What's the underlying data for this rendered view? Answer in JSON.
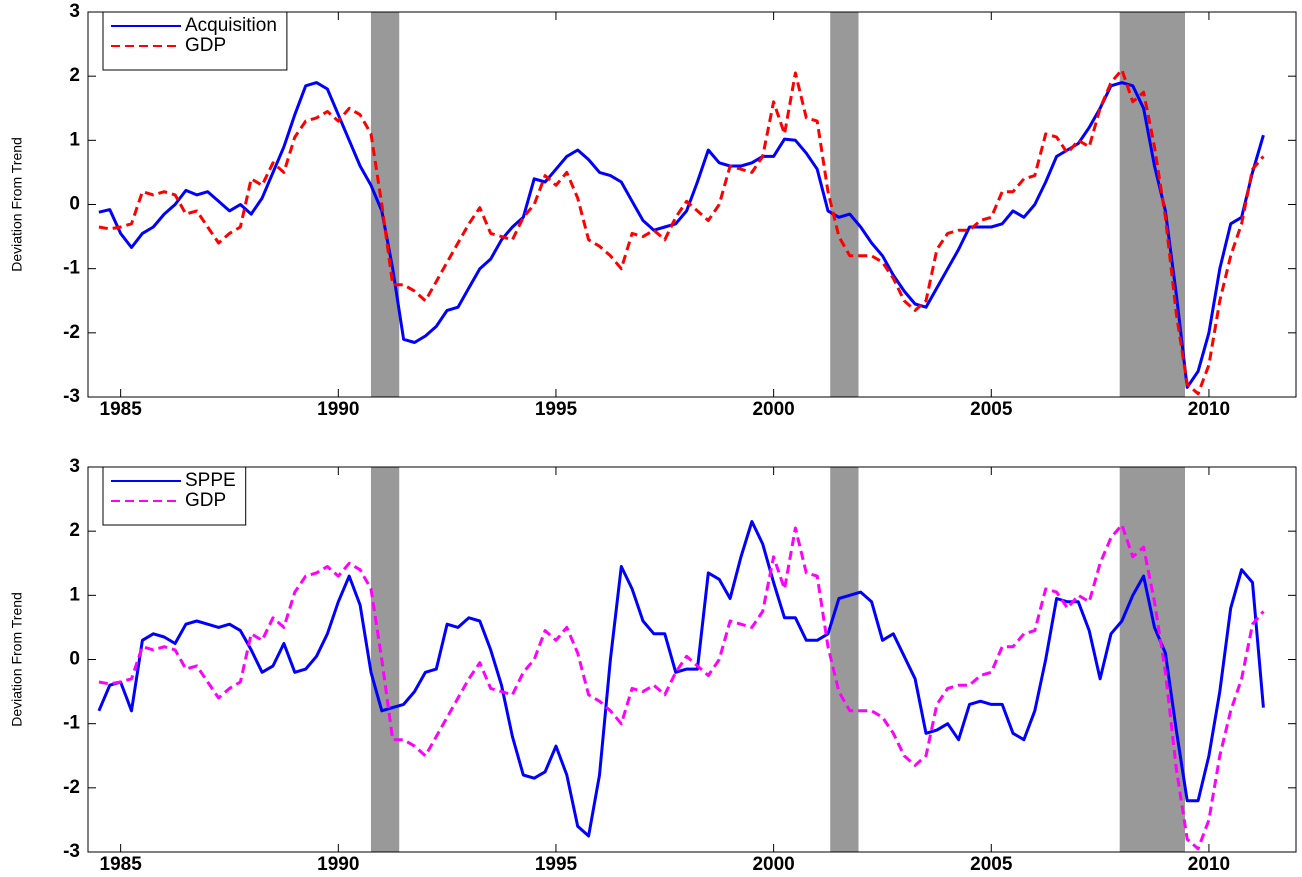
{
  "chart_data": [
    {
      "type": "line",
      "ylabel": "Deviation From Trend",
      "xlim": [
        1984.25,
        2012
      ],
      "ylim": [
        -3,
        3
      ],
      "xticks": [
        1985,
        1990,
        1995,
        2000,
        2005,
        2010
      ],
      "yticks": [
        -3,
        -2,
        -1,
        0,
        1,
        2,
        3
      ],
      "legend": "upper left",
      "shade_color": "#999999",
      "shaded_periods": [
        [
          1990.75,
          1991.4
        ],
        [
          2001.3,
          2001.95
        ],
        [
          2007.95,
          2009.45
        ]
      ],
      "x": [
        1984.5,
        1984.75,
        1985,
        1985.25,
        1985.5,
        1985.75,
        1986,
        1986.25,
        1986.5,
        1986.75,
        1987,
        1987.25,
        1987.5,
        1987.75,
        1988,
        1988.25,
        1988.5,
        1988.75,
        1989,
        1989.25,
        1989.5,
        1989.75,
        1990,
        1990.25,
        1990.5,
        1990.75,
        1991,
        1991.25,
        1991.5,
        1991.75,
        1992,
        1992.25,
        1992.5,
        1992.75,
        1993,
        1993.25,
        1993.5,
        1993.75,
        1994,
        1994.25,
        1994.5,
        1994.75,
        1995,
        1995.25,
        1995.5,
        1995.75,
        1996,
        1996.25,
        1996.5,
        1996.75,
        1997,
        1997.25,
        1997.5,
        1997.75,
        1998,
        1998.25,
        1998.5,
        1998.75,
        1999,
        1999.25,
        1999.5,
        1999.75,
        2000,
        2000.25,
        2000.5,
        2000.75,
        2001,
        2001.25,
        2001.5,
        2001.75,
        2002,
        2002.25,
        2002.5,
        2002.75,
        2003,
        2003.25,
        2003.5,
        2003.75,
        2004,
        2004.25,
        2004.5,
        2004.75,
        2005,
        2005.25,
        2005.5,
        2005.75,
        2006,
        2006.25,
        2006.5,
        2006.75,
        2007,
        2007.25,
        2007.5,
        2007.75,
        2008,
        2008.25,
        2008.5,
        2008.75,
        2009,
        2009.25,
        2009.5,
        2009.75,
        2010,
        2010.25,
        2010.5,
        2010.75,
        2011,
        2011.25
      ],
      "series": [
        {
          "name": "Acquisition",
          "color": "#0000ff",
          "linestyle": "solid",
          "values": [
            -0.12,
            -0.08,
            -0.45,
            -0.67,
            -0.45,
            -0.35,
            -0.15,
            0,
            0.22,
            0.15,
            0.2,
            0.05,
            -0.1,
            0,
            -0.15,
            0.1,
            0.5,
            0.9,
            1.4,
            1.85,
            1.9,
            1.8,
            1.4,
            1,
            0.6,
            0.3,
            -0.1,
            -1,
            -2.1,
            -2.15,
            -2.05,
            -1.9,
            -1.65,
            -1.6,
            -1.3,
            -1,
            -0.85,
            -0.55,
            -0.35,
            -0.2,
            0.4,
            0.35,
            0.55,
            0.75,
            0.85,
            0.7,
            0.5,
            0.45,
            0.35,
            0.05,
            -0.25,
            -0.4,
            -0.35,
            -0.3,
            -0.1,
            0.35,
            0.85,
            0.65,
            0.6,
            0.6,
            0.65,
            0.75,
            0.75,
            1.02,
            1,
            0.8,
            0.55,
            -0.1,
            -0.2,
            -0.15,
            -0.35,
            -0.6,
            -0.8,
            -1.1,
            -1.35,
            -1.55,
            -1.6,
            -1.3,
            -1,
            -0.7,
            -0.35,
            -0.35,
            -0.35,
            -0.3,
            -0.1,
            -0.2,
            0,
            0.35,
            0.75,
            0.85,
            0.95,
            1.2,
            1.5,
            1.85,
            1.9,
            1.85,
            1.5,
            0.6,
            -0.1,
            -1.4,
            -2.85,
            -2.6,
            -2,
            -1,
            -0.3,
            -0.2,
            0.5,
            1.08
          ]
        },
        {
          "name": "GDP",
          "color": "#ff0000",
          "linestyle": "dashed",
          "values": [
            -0.35,
            -0.38,
            -0.35,
            -0.3,
            0.2,
            0.15,
            0.2,
            0.15,
            -0.15,
            -0.1,
            -0.35,
            -0.6,
            -0.45,
            -0.35,
            0.4,
            0.3,
            0.65,
            0.5,
            1.05,
            1.3,
            1.35,
            1.45,
            1.3,
            1.5,
            1.4,
            1.1,
            0,
            -1.25,
            -1.25,
            -1.35,
            -1.5,
            -1.2,
            -0.9,
            -0.6,
            -0.3,
            -0.05,
            -0.45,
            -0.5,
            -0.55,
            -0.2,
            0,
            0.45,
            0.3,
            0.5,
            0.1,
            -0.55,
            -0.65,
            -0.8,
            -1,
            -0.45,
            -0.5,
            -0.4,
            -0.55,
            -0.2,
            0.05,
            -0.1,
            -0.25,
            0,
            0.6,
            0.55,
            0.5,
            0.75,
            1.6,
            1.1,
            2.05,
            1.35,
            1.3,
            0.2,
            -0.5,
            -0.8,
            -0.8,
            -0.8,
            -0.9,
            -1.15,
            -1.5,
            -1.65,
            -1.5,
            -0.7,
            -0.45,
            -0.4,
            -0.4,
            -0.25,
            -0.2,
            0.2,
            0.2,
            0.4,
            0.45,
            1.1,
            1.05,
            0.8,
            1,
            0.9,
            1.5,
            1.9,
            2.1,
            1.6,
            1.75,
            0.9,
            -0.2,
            -1.7,
            -2.8,
            -2.95,
            -2.5,
            -1.5,
            -0.8,
            -0.3,
            0.55,
            0.75
          ]
        }
      ]
    },
    {
      "type": "line",
      "ylabel": "Deviation From Trend",
      "xlim": [
        1984.25,
        2012
      ],
      "ylim": [
        -3,
        3
      ],
      "xticks": [
        1985,
        1990,
        1995,
        2000,
        2005,
        2010
      ],
      "yticks": [
        -3,
        -2,
        -1,
        0,
        1,
        2,
        3
      ],
      "legend": "upper left",
      "shade_color": "#999999",
      "shaded_periods": [
        [
          1990.75,
          1991.4
        ],
        [
          2001.3,
          2001.95
        ],
        [
          2007.95,
          2009.45
        ]
      ],
      "x": [
        1984.5,
        1984.75,
        1985,
        1985.25,
        1985.5,
        1985.75,
        1986,
        1986.25,
        1986.5,
        1986.75,
        1987,
        1987.25,
        1987.5,
        1987.75,
        1988,
        1988.25,
        1988.5,
        1988.75,
        1989,
        1989.25,
        1989.5,
        1989.75,
        1990,
        1990.25,
        1990.5,
        1990.75,
        1991,
        1991.25,
        1991.5,
        1991.75,
        1992,
        1992.25,
        1992.5,
        1992.75,
        1993,
        1993.25,
        1993.5,
        1993.75,
        1994,
        1994.25,
        1994.5,
        1994.75,
        1995,
        1995.25,
        1995.5,
        1995.75,
        1996,
        1996.25,
        1996.5,
        1996.75,
        1997,
        1997.25,
        1997.5,
        1997.75,
        1998,
        1998.25,
        1998.5,
        1998.75,
        1999,
        1999.25,
        1999.5,
        1999.75,
        2000,
        2000.25,
        2000.5,
        2000.75,
        2001,
        2001.25,
        2001.5,
        2001.75,
        2002,
        2002.25,
        2002.5,
        2002.75,
        2003,
        2003.25,
        2003.5,
        2003.75,
        2004,
        2004.25,
        2004.5,
        2004.75,
        2005,
        2005.25,
        2005.5,
        2005.75,
        2006,
        2006.25,
        2006.5,
        2006.75,
        2007,
        2007.25,
        2007.5,
        2007.75,
        2008,
        2008.25,
        2008.5,
        2008.75,
        2009,
        2009.25,
        2009.5,
        2009.75,
        2010,
        2010.25,
        2010.5,
        2010.75,
        2011,
        2011.25
      ],
      "series": [
        {
          "name": "SPPE",
          "color": "#0000ff",
          "linestyle": "solid",
          "values": [
            -0.8,
            -0.4,
            -0.35,
            -0.8,
            0.3,
            0.4,
            0.35,
            0.25,
            0.55,
            0.6,
            0.55,
            0.5,
            0.55,
            0.45,
            0.15,
            -0.2,
            -0.1,
            0.25,
            -0.2,
            -0.15,
            0.05,
            0.4,
            0.9,
            1.3,
            0.85,
            -0.2,
            -0.8,
            -0.75,
            -0.7,
            -0.5,
            -0.2,
            -0.15,
            0.55,
            0.5,
            0.65,
            0.6,
            0.15,
            -0.4,
            -1.2,
            -1.8,
            -1.85,
            -1.75,
            -1.35,
            -1.8,
            -2.6,
            -2.75,
            -1.8,
            0,
            1.45,
            1.1,
            0.6,
            0.4,
            0.4,
            -0.2,
            -0.15,
            -0.15,
            1.35,
            1.25,
            0.95,
            1.6,
            2.15,
            1.8,
            1.2,
            0.65,
            0.65,
            0.3,
            0.3,
            0.4,
            0.95,
            1,
            1.05,
            0.9,
            0.3,
            0.4,
            0.05,
            -0.3,
            -1.15,
            -1.1,
            -1,
            -1.25,
            -0.7,
            -0.65,
            -0.7,
            -0.7,
            -1.15,
            -1.25,
            -0.8,
            0,
            0.95,
            0.9,
            0.9,
            0.45,
            -0.3,
            0.4,
            0.6,
            1,
            1.3,
            0.5,
            0.1,
            -1.1,
            -2.2,
            -2.2,
            -1.5,
            -0.5,
            0.8,
            1.4,
            1.2,
            -0.75
          ]
        },
        {
          "name": "GDP",
          "color": "#ff00ff",
          "linestyle": "dashed",
          "values": [
            -0.35,
            -0.38,
            -0.35,
            -0.3,
            0.2,
            0.15,
            0.2,
            0.15,
            -0.15,
            -0.1,
            -0.35,
            -0.6,
            -0.45,
            -0.35,
            0.4,
            0.3,
            0.65,
            0.5,
            1.05,
            1.3,
            1.35,
            1.45,
            1.3,
            1.5,
            1.4,
            1.1,
            0,
            -1.25,
            -1.25,
            -1.35,
            -1.5,
            -1.2,
            -0.9,
            -0.6,
            -0.3,
            -0.05,
            -0.45,
            -0.5,
            -0.55,
            -0.2,
            0,
            0.45,
            0.3,
            0.5,
            0.1,
            -0.55,
            -0.65,
            -0.8,
            -1,
            -0.45,
            -0.5,
            -0.4,
            -0.55,
            -0.2,
            0.05,
            -0.1,
            -0.25,
            0,
            0.6,
            0.55,
            0.5,
            0.75,
            1.6,
            1.1,
            2.05,
            1.35,
            1.3,
            0.2,
            -0.5,
            -0.8,
            -0.8,
            -0.8,
            -0.9,
            -1.15,
            -1.5,
            -1.65,
            -1.5,
            -0.7,
            -0.45,
            -0.4,
            -0.4,
            -0.25,
            -0.2,
            0.2,
            0.2,
            0.4,
            0.45,
            1.1,
            1.05,
            0.8,
            1,
            0.9,
            1.5,
            1.9,
            2.1,
            1.6,
            1.75,
            0.9,
            -0.2,
            -1.7,
            -2.8,
            -2.95,
            -2.5,
            -1.5,
            -0.8,
            -0.3,
            0.55,
            0.75
          ]
        }
      ]
    }
  ]
}
